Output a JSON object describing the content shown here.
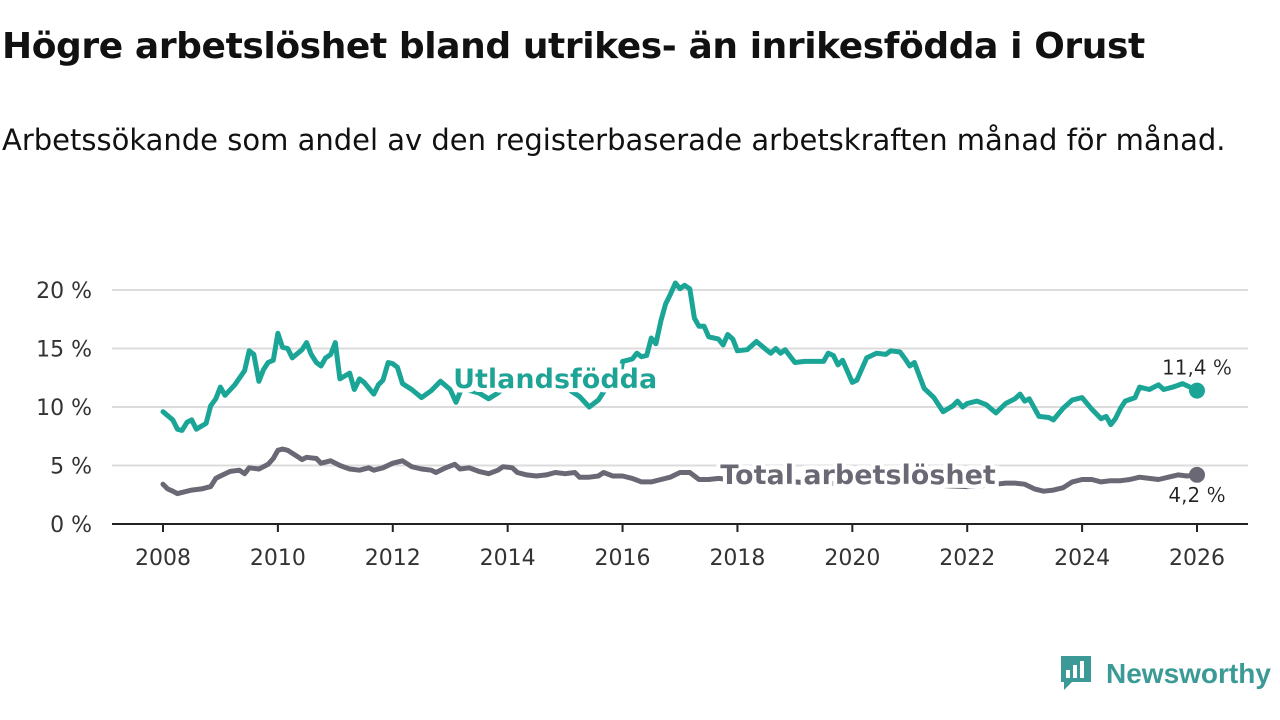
{
  "title": "Högre arbetslöshet bland utrikes- än inrikesfödda i Orust",
  "subtitle": "Arbetssökande som andel av den registerbaserade arbetskraften månad för månad.",
  "brand": {
    "name": "Newsworthy",
    "icon": "newsworthy-logo-icon",
    "color": "#3b9a96"
  },
  "chart_data": {
    "type": "line",
    "title": "Högre arbetslöshet bland utrikes- än inrikesfödda i Orust",
    "xlabel": "",
    "ylabel": "",
    "xlim": [
      2008,
      2026
    ],
    "ylim": [
      0,
      20
    ],
    "x_ticks": [
      "2008",
      "2010",
      "2012",
      "2014",
      "2016",
      "2018",
      "2020",
      "2022",
      "2024",
      "2026"
    ],
    "y_ticks": [
      "0 %",
      "5 %",
      "10 %",
      "15 %",
      "20 %"
    ],
    "grid": true,
    "series": [
      {
        "name": "Utlandsfödda",
        "color": "#1ba597",
        "end_label": "11,4 %",
        "points": [
          [
            2008.0,
            9.6
          ],
          [
            2008.17,
            8.9
          ],
          [
            2008.25,
            8.1
          ],
          [
            2008.33,
            8.0
          ],
          [
            2008.42,
            8.7
          ],
          [
            2008.5,
            8.9
          ],
          [
            2008.58,
            8.1
          ],
          [
            2008.75,
            8.6
          ],
          [
            2008.83,
            10.1
          ],
          [
            2008.92,
            10.7
          ],
          [
            2009.0,
            11.7
          ],
          [
            2009.08,
            11.0
          ],
          [
            2009.25,
            11.9
          ],
          [
            2009.42,
            13.1
          ],
          [
            2009.5,
            14.8
          ],
          [
            2009.58,
            14.5
          ],
          [
            2009.67,
            12.2
          ],
          [
            2009.75,
            13.2
          ],
          [
            2009.83,
            13.8
          ],
          [
            2009.92,
            14.0
          ],
          [
            2010.0,
            16.3
          ],
          [
            2010.08,
            15.1
          ],
          [
            2010.17,
            15.0
          ],
          [
            2010.25,
            14.2
          ],
          [
            2010.42,
            14.9
          ],
          [
            2010.5,
            15.5
          ],
          [
            2010.58,
            14.5
          ],
          [
            2010.67,
            13.8
          ],
          [
            2010.75,
            13.5
          ],
          [
            2010.83,
            14.2
          ],
          [
            2010.92,
            14.5
          ],
          [
            2011.0,
            15.5
          ],
          [
            2011.08,
            12.4
          ],
          [
            2011.25,
            12.9
          ],
          [
            2011.33,
            11.5
          ],
          [
            2011.42,
            12.4
          ],
          [
            2011.5,
            12.1
          ],
          [
            2011.67,
            11.1
          ],
          [
            2011.75,
            11.9
          ],
          [
            2011.83,
            12.3
          ],
          [
            2011.92,
            13.8
          ],
          [
            2012.0,
            13.7
          ],
          [
            2012.08,
            13.4
          ],
          [
            2012.17,
            12.0
          ],
          [
            2012.33,
            11.5
          ],
          [
            2012.5,
            10.8
          ],
          [
            2012.67,
            11.4
          ],
          [
            2012.83,
            12.2
          ],
          [
            2013.0,
            11.5
          ],
          [
            2013.1,
            10.4
          ],
          [
            2013.2,
            11.6
          ],
          [
            2013.5,
            11.2
          ],
          [
            2013.67,
            10.7
          ],
          [
            2013.83,
            11.2
          ],
          [
            2014.0,
            11.9
          ],
          [
            2014.33,
            12.6
          ],
          [
            2014.67,
            12.2
          ],
          [
            2015.0,
            11.7
          ],
          [
            2015.25,
            10.9
          ],
          [
            2015.42,
            10.0
          ],
          [
            2015.58,
            10.6
          ],
          [
            2015.75,
            11.9
          ],
          [
            2015.83,
            11.5
          ],
          [
            2015.92,
            11.7
          ],
          [
            2016.0,
            13.9
          ],
          [
            2016.17,
            14.1
          ],
          [
            2016.25,
            14.6
          ],
          [
            2016.33,
            14.3
          ],
          [
            2016.42,
            14.4
          ],
          [
            2016.5,
            15.9
          ],
          [
            2016.58,
            15.4
          ],
          [
            2016.67,
            17.4
          ],
          [
            2016.75,
            18.8
          ],
          [
            2016.83,
            19.6
          ],
          [
            2016.92,
            20.6
          ],
          [
            2017.0,
            20.1
          ],
          [
            2017.08,
            20.4
          ],
          [
            2017.17,
            20.1
          ],
          [
            2017.25,
            17.6
          ],
          [
            2017.33,
            16.9
          ],
          [
            2017.42,
            16.9
          ],
          [
            2017.5,
            16.0
          ],
          [
            2017.67,
            15.8
          ],
          [
            2017.75,
            15.3
          ],
          [
            2017.83,
            16.2
          ],
          [
            2017.92,
            15.8
          ],
          [
            2018.0,
            14.8
          ],
          [
            2018.17,
            14.9
          ],
          [
            2018.33,
            15.6
          ],
          [
            2018.5,
            14.9
          ],
          [
            2018.58,
            14.6
          ],
          [
            2018.67,
            15.0
          ],
          [
            2018.75,
            14.6
          ],
          [
            2018.83,
            14.9
          ],
          [
            2019.0,
            13.8
          ],
          [
            2019.17,
            13.9
          ],
          [
            2019.33,
            13.9
          ],
          [
            2019.5,
            13.9
          ],
          [
            2019.58,
            14.6
          ],
          [
            2019.67,
            14.4
          ],
          [
            2019.75,
            13.6
          ],
          [
            2019.83,
            14.0
          ],
          [
            2020.0,
            12.1
          ],
          [
            2020.08,
            12.3
          ],
          [
            2020.25,
            14.2
          ],
          [
            2020.42,
            14.6
          ],
          [
            2020.58,
            14.5
          ],
          [
            2020.67,
            14.8
          ],
          [
            2020.83,
            14.7
          ],
          [
            2020.92,
            14.1
          ],
          [
            2021.0,
            13.5
          ],
          [
            2021.08,
            13.8
          ],
          [
            2021.25,
            11.6
          ],
          [
            2021.42,
            10.8
          ],
          [
            2021.58,
            9.6
          ],
          [
            2021.75,
            10.1
          ],
          [
            2021.83,
            10.5
          ],
          [
            2021.92,
            10.0
          ],
          [
            2022.0,
            10.3
          ],
          [
            2022.17,
            10.5
          ],
          [
            2022.33,
            10.2
          ],
          [
            2022.5,
            9.5
          ],
          [
            2022.67,
            10.3
          ],
          [
            2022.83,
            10.7
          ],
          [
            2022.92,
            11.1
          ],
          [
            2023.0,
            10.5
          ],
          [
            2023.08,
            10.7
          ],
          [
            2023.25,
            9.2
          ],
          [
            2023.42,
            9.1
          ],
          [
            2023.5,
            8.9
          ],
          [
            2023.67,
            9.9
          ],
          [
            2023.83,
            10.6
          ],
          [
            2024.0,
            10.8
          ],
          [
            2024.17,
            9.8
          ],
          [
            2024.33,
            9.0
          ],
          [
            2024.42,
            9.2
          ],
          [
            2024.5,
            8.5
          ],
          [
            2024.58,
            9.0
          ],
          [
            2024.67,
            9.9
          ],
          [
            2024.75,
            10.5
          ],
          [
            2024.92,
            10.8
          ],
          [
            2025.0,
            11.7
          ],
          [
            2025.17,
            11.5
          ],
          [
            2025.33,
            11.9
          ],
          [
            2025.42,
            11.5
          ],
          [
            2025.58,
            11.7
          ],
          [
            2025.75,
            12.0
          ],
          [
            2025.92,
            11.6
          ],
          [
            2026.0,
            11.4
          ]
        ]
      },
      {
        "name": "Total arbetslöshet",
        "color": "#6b6875",
        "end_label": "4,2 %",
        "points": [
          [
            2008.0,
            3.4
          ],
          [
            2008.08,
            3.0
          ],
          [
            2008.17,
            2.8
          ],
          [
            2008.25,
            2.6
          ],
          [
            2008.33,
            2.7
          ],
          [
            2008.5,
            2.9
          ],
          [
            2008.67,
            3.0
          ],
          [
            2008.83,
            3.2
          ],
          [
            2008.92,
            3.9
          ],
          [
            2009.0,
            4.1
          ],
          [
            2009.17,
            4.5
          ],
          [
            2009.33,
            4.6
          ],
          [
            2009.42,
            4.3
          ],
          [
            2009.5,
            4.8
          ],
          [
            2009.67,
            4.7
          ],
          [
            2009.83,
            5.1
          ],
          [
            2009.92,
            5.6
          ],
          [
            2010.0,
            6.3
          ],
          [
            2010.08,
            6.4
          ],
          [
            2010.17,
            6.3
          ],
          [
            2010.33,
            5.8
          ],
          [
            2010.42,
            5.5
          ],
          [
            2010.5,
            5.7
          ],
          [
            2010.67,
            5.6
          ],
          [
            2010.75,
            5.2
          ],
          [
            2010.92,
            5.4
          ],
          [
            2011.08,
            5.0
          ],
          [
            2011.25,
            4.7
          ],
          [
            2011.42,
            4.6
          ],
          [
            2011.58,
            4.8
          ],
          [
            2011.67,
            4.6
          ],
          [
            2011.83,
            4.8
          ],
          [
            2012.0,
            5.2
          ],
          [
            2012.17,
            5.4
          ],
          [
            2012.33,
            4.9
          ],
          [
            2012.5,
            4.7
          ],
          [
            2012.67,
            4.6
          ],
          [
            2012.75,
            4.4
          ],
          [
            2012.92,
            4.8
          ],
          [
            2013.08,
            5.1
          ],
          [
            2013.17,
            4.7
          ],
          [
            2013.33,
            4.8
          ],
          [
            2013.5,
            4.5
          ],
          [
            2013.67,
            4.3
          ],
          [
            2013.83,
            4.6
          ],
          [
            2013.92,
            4.9
          ],
          [
            2014.08,
            4.8
          ],
          [
            2014.17,
            4.4
          ],
          [
            2014.33,
            4.2
          ],
          [
            2014.5,
            4.1
          ],
          [
            2014.67,
            4.2
          ],
          [
            2014.83,
            4.4
          ],
          [
            2015.0,
            4.3
          ],
          [
            2015.17,
            4.4
          ],
          [
            2015.25,
            4.0
          ],
          [
            2015.42,
            4.0
          ],
          [
            2015.58,
            4.1
          ],
          [
            2015.67,
            4.4
          ],
          [
            2015.83,
            4.1
          ],
          [
            2016.0,
            4.1
          ],
          [
            2016.17,
            3.9
          ],
          [
            2016.33,
            3.6
          ],
          [
            2016.5,
            3.6
          ],
          [
            2016.67,
            3.8
          ],
          [
            2016.83,
            4.0
          ],
          [
            2017.0,
            4.4
          ],
          [
            2017.17,
            4.4
          ],
          [
            2017.33,
            3.8
          ],
          [
            2017.5,
            3.8
          ],
          [
            2017.67,
            3.9
          ],
          [
            2018.0,
            3.7
          ],
          [
            2018.5,
            3.6
          ],
          [
            2019.0,
            3.6
          ],
          [
            2019.5,
            3.4
          ],
          [
            2020.0,
            3.6
          ],
          [
            2020.5,
            3.5
          ],
          [
            2021.0,
            3.4
          ],
          [
            2021.5,
            3.3
          ],
          [
            2022.0,
            3.2
          ],
          [
            2022.33,
            3.3
          ],
          [
            2022.5,
            3.4
          ],
          [
            2022.67,
            3.5
          ],
          [
            2022.83,
            3.5
          ],
          [
            2023.0,
            3.4
          ],
          [
            2023.17,
            3.0
          ],
          [
            2023.33,
            2.8
          ],
          [
            2023.5,
            2.9
          ],
          [
            2023.67,
            3.1
          ],
          [
            2023.83,
            3.6
          ],
          [
            2024.0,
            3.8
          ],
          [
            2024.17,
            3.8
          ],
          [
            2024.33,
            3.6
          ],
          [
            2024.5,
            3.7
          ],
          [
            2024.67,
            3.7
          ],
          [
            2024.83,
            3.8
          ],
          [
            2025.0,
            4.0
          ],
          [
            2025.17,
            3.9
          ],
          [
            2025.33,
            3.8
          ],
          [
            2025.5,
            4.0
          ],
          [
            2025.67,
            4.2
          ],
          [
            2025.83,
            4.1
          ],
          [
            2026.0,
            4.2
          ]
        ]
      }
    ],
    "annotations": [
      {
        "text": "Utlandsfödda",
        "series": "Utlandsfödda",
        "x": 2013.05,
        "y": 12.4
      },
      {
        "text": "Total arbetslöshet",
        "series": "Total arbetslöshet",
        "x": 2017.7,
        "y": 4.2
      }
    ]
  }
}
